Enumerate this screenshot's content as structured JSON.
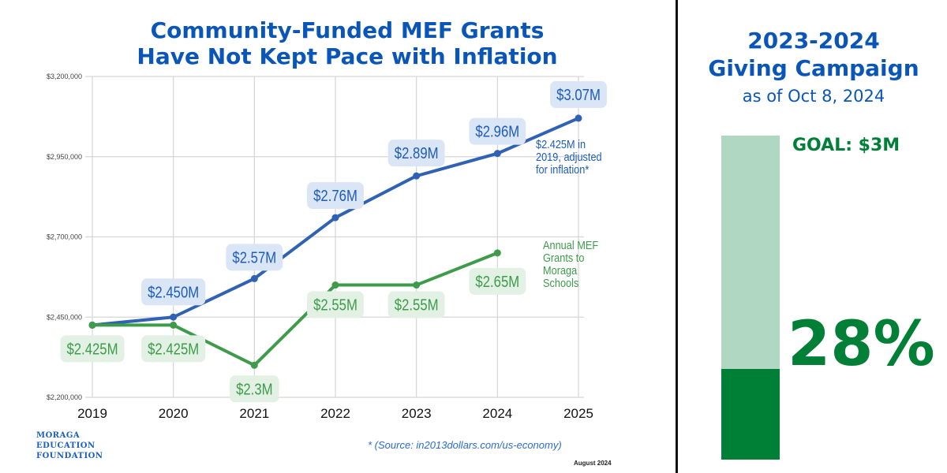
{
  "chart_data": {
    "type": "line",
    "title": "Community-Funded MEF Grants Have Not Kept Pace with Inflation",
    "xlabel": "",
    "ylabel": "",
    "x": [
      "2019",
      "2020",
      "2021",
      "2022",
      "2023",
      "2024",
      "2025"
    ],
    "ylim": [
      2200000,
      3200000
    ],
    "yticks": [
      2200000,
      2450000,
      2700000,
      2950000,
      3200000
    ],
    "ytick_labels": [
      "$2,200,000",
      "$2,450,000",
      "$2,700,000",
      "$2,950,000",
      "$3,200,000"
    ],
    "grid": true,
    "series": [
      {
        "name": "$2.425M in 2019, adjusted for inflation*",
        "color": "#2f61b5",
        "label_bg": "#dae6f5",
        "label_color": "#1d5cba",
        "values": [
          2425000,
          2450000,
          2570000,
          2760000,
          2890000,
          2960000,
          3070000
        ],
        "labels": [
          null,
          "$2.450M",
          "$2.57M",
          "$2.76M",
          "$2.89M",
          "$2.96M",
          "$3.07M"
        ]
      },
      {
        "name": "Annual MEF Grants to Moraga Schools",
        "color": "#3d9b4a",
        "label_bg": "#e2f1e4",
        "label_color": "#3d9b4a",
        "values": [
          2425000,
          2425000,
          2300000,
          2550000,
          2550000,
          2650000,
          null
        ],
        "labels": [
          "$2.425M",
          "$2.425M",
          "$2.3M",
          "$2.55M",
          "$2.55M",
          "$2.65M",
          null
        ]
      }
    ],
    "annotations": {
      "blue_note": [
        "$2.425M in",
        "2019, adjusted",
        "for inflation*"
      ],
      "green_note": [
        "Annual MEF",
        "Grants to",
        "Moraga",
        "Schools"
      ]
    }
  },
  "header": {
    "title_line1": "Community-Funded MEF Grants",
    "title_line2": "Have Not Kept Pace with Inflation"
  },
  "footer": {
    "logo_lines": [
      "MORAGA",
      "EDUCATION",
      "FOUNDATION"
    ],
    "source": "* (Source: in2013dollars.com/us-economy)",
    "date": "August 2024"
  },
  "campaign": {
    "title_line1": "2023-2024",
    "title_line2": "Giving Campaign",
    "subtitle": "as of Oct 8, 2024",
    "goal_label": "GOAL: $3M",
    "progress_percent": 28,
    "progress_label": "28%",
    "colors": {
      "filled": "#007f37",
      "remaining": "#b0d7c2"
    }
  }
}
